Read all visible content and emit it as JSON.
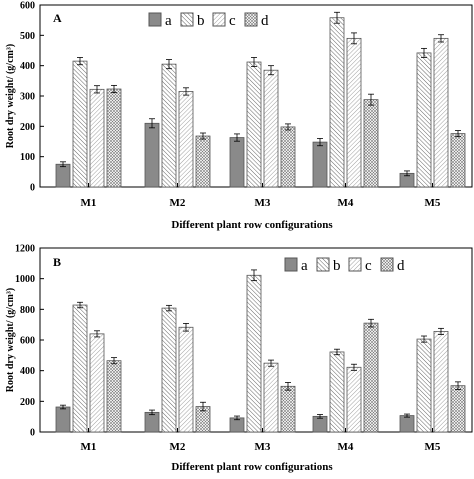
{
  "colors": {
    "a": "#8a8a8a",
    "b": "#ffffff",
    "c": "#ffffff",
    "d": "#ffffff",
    "stroke": "#555555"
  },
  "chart_data": [
    {
      "type": "bar",
      "panel_label": "A",
      "categories": [
        "M1",
        "M2",
        "M3",
        "M4",
        "M5"
      ],
      "xlabel": "Different plant row configurations",
      "ylabel": "Root dry weight/ (g/cm³)",
      "ylim": [
        0,
        600
      ],
      "yticks": [
        0,
        100,
        200,
        300,
        400,
        500,
        600
      ],
      "legend_position": "top-center",
      "series": [
        {
          "name": "a",
          "values": [
            75,
            210,
            163,
            148,
            45
          ],
          "errors": [
            8,
            15,
            12,
            12,
            8
          ]
        },
        {
          "name": "b",
          "values": [
            415,
            405,
            412,
            558,
            442
          ],
          "errors": [
            12,
            15,
            15,
            18,
            15
          ]
        },
        {
          "name": "c",
          "values": [
            322,
            315,
            385,
            490,
            490
          ],
          "errors": [
            12,
            12,
            15,
            18,
            12
          ]
        },
        {
          "name": "d",
          "values": [
            323,
            168,
            198,
            288,
            176
          ],
          "errors": [
            12,
            10,
            10,
            18,
            10
          ]
        }
      ]
    },
    {
      "type": "bar",
      "panel_label": "B",
      "categories": [
        "M1",
        "M2",
        "M3",
        "M4",
        "M5"
      ],
      "xlabel": "Different plant row configurations",
      "ylabel": "Root dry weight/ (g/cm³)",
      "ylim": [
        0,
        1200
      ],
      "yticks": [
        0,
        200,
        400,
        600,
        800,
        1000,
        1200
      ],
      "legend_position": "top-right",
      "series": [
        {
          "name": "a",
          "values": [
            163,
            128,
            92,
            102,
            107
          ],
          "errors": [
            12,
            15,
            12,
            12,
            10
          ]
        },
        {
          "name": "b",
          "values": [
            828,
            808,
            1022,
            522,
            606
          ],
          "errors": [
            18,
            18,
            35,
            18,
            20
          ]
        },
        {
          "name": "c",
          "values": [
            640,
            683,
            449,
            422,
            656
          ],
          "errors": [
            20,
            25,
            20,
            20,
            20
          ]
        },
        {
          "name": "d",
          "values": [
            465,
            166,
            298,
            710,
            302
          ],
          "errors": [
            20,
            28,
            25,
            25,
            25
          ]
        }
      ]
    }
  ]
}
